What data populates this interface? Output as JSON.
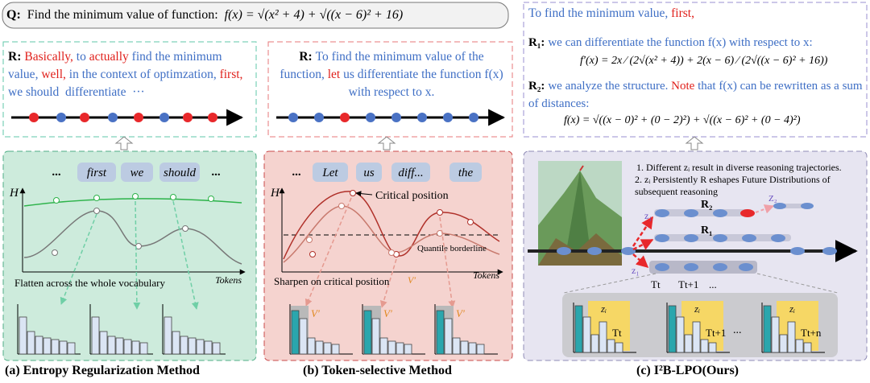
{
  "question": {
    "label": "Q:",
    "text": "Find the minimum value of function:",
    "formula": "f(x) = √(x² + 4) + √((x − 6)² + 16)"
  },
  "panels": [
    {
      "response_label": "R:",
      "response": [
        {
          "text": "Basically,",
          "color": "#e0201b"
        },
        {
          "text": " to ",
          "color": "#3f6fc5"
        },
        {
          "text": "actually",
          "color": "#e0201b"
        },
        {
          "text": " find the minimum value, ",
          "color": "#3f6fc5"
        },
        {
          "text": "well,",
          "color": "#e0201b"
        },
        {
          "text": " in the context of optimzation, ",
          "color": "#3f6fc5"
        },
        {
          "text": "first,",
          "color": "#e0201b"
        },
        {
          "text": " we should  differentiate  ···",
          "color": "#3f6fc5"
        }
      ],
      "tokens": [
        "...",
        "first",
        "we",
        "should",
        "..."
      ],
      "axis_y": "H",
      "axis_x": "Tokens",
      "annotation": "Flatten across the whole vocabulary",
      "caption": "(a) Entropy Regularization Method"
    },
    {
      "response_label": "R:",
      "response": [
        {
          "text": "To find the minimum value of the function, ",
          "color": "#3f6fc5"
        },
        {
          "text": "let",
          "color": "#e0201b"
        },
        {
          "text": " us differentiate the function f(x) with respect to x.",
          "color": "#3f6fc5"
        }
      ],
      "tokens": [
        "...",
        "Let",
        "us",
        "diff...",
        "the"
      ],
      "axis_y": "H",
      "axis_x": "Tokens",
      "critical": "Critical position",
      "borderline": "Quantile borderline",
      "annotation": "Sharpen on critical position",
      "vprime": "V′",
      "bar_labels": [
        "V′",
        "V′",
        "V′"
      ],
      "caption": "(b) Token-selective Method"
    },
    {
      "intro": [
        {
          "text": "To find the minimum value, ",
          "color": "#3f6fc5"
        },
        {
          "text": "first,",
          "color": "#e0201b"
        }
      ],
      "r1_label": "R₁:",
      "r1": [
        {
          "text": "we can differentiate the function f(x) with respect to x:",
          "color": "#3f6fc5"
        }
      ],
      "r1_formula": "f′(x) = 2x ⁄ (2√(x² + 4)) + 2(x − 6) ⁄ (2√((x − 6)² + 16))",
      "r2_label": "R₂:",
      "r2": [
        {
          "text": "we analyze the structure. ",
          "color": "#3f6fc5"
        },
        {
          "text": "Note",
          "color": "#e0201b"
        },
        {
          "text": " that f(x) can be rewritten as a sum of distances:",
          "color": "#3f6fc5"
        }
      ],
      "r2_formula": "f(x) = √((x − 0)² + (0 − 2)²) + √((x − 6)² + (0 − 4)²)",
      "notes": [
        "1. Different zᵢ result in diverse reasoning trajectories.",
        "2. zᵢ Persistently R eshapes Future Distributions of subsequent reasoning"
      ],
      "branch_labels": [
        "R₂",
        "R₁"
      ],
      "z_labels": [
        "z₁",
        "z₁",
        "Z₂"
      ],
      "step_labels": [
        "Tt",
        "Tt+1",
        "..."
      ],
      "hist_z": [
        "zᵢ",
        "zᵢ",
        "zᵢ"
      ],
      "hist_t": [
        "Tt",
        "Tt+1",
        "Tt+n"
      ],
      "hist_gap": "...",
      "caption": "(c) I²B-LPO(Ours)"
    }
  ]
}
